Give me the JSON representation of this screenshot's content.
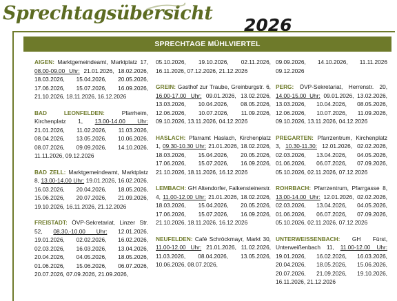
{
  "header": {
    "title": "Sprechtagsübersicht",
    "year": "2026",
    "section": "SPRECHTAGE MÜHLVIERTEL"
  },
  "columns": [
    [
      {
        "name": "AIGEN:",
        "location": "Marktgemeindeamt, Marktplatz 17,",
        "time": "08.00-09.00 Uhr:",
        "dates": "21.01.2026, 18.02.2026, 18.03.2026, 15.04.2026, 20.05.2026, 17.06.2026, 15.07.2026, 16.09.2026, 21.10.2026, 18.11.2026, 16.12.2026"
      },
      {
        "name": "BAD LEONFELDEN:",
        "location": "Pfarrheim, Kirchenplatz 1,",
        "time": "13.00-14.00 Uhr:",
        "dates": "21.01.2026, 11.02.2026, 11.03.2026, 08.04.2026, 13.05.2026, 10.06.2026, 08.07.2026, 09.09.2026, 14.10.2026, 11.11.2026, 09.12.2026"
      },
      {
        "name": "BAD ZELL:",
        "location": "Marktgemeindeamt, Marktplatz 8,",
        "time": "13.00-14.00 Uhr:",
        "dates": "19.01.2026, 16.02.2026, 16.03.2026, 20.04.2026, 18.05.2026, 15.06.2026, 20.07.2026, 21.09.2026, 19.10.2026, 16.11.2026, 21.12.2026"
      },
      {
        "name": "FREISTADT:",
        "location": "ÖVP-Sekretariat, Linzer Str. 52,",
        "time": "08.30.-10.00 Uhr:",
        "dates": "12.01.2026, 19.01.2026, 02.02.2026, 16.02.2026, 02.03.2026, 16.03.2026, 13.04.2026, 20.04.2026, 04.05.2026, 18.05.2026, 01.06.2026, 15.06.2026, 06.07.2026, 20.07.2026, 07.09.2026, 21.09.2026,"
      }
    ],
    [
      {
        "name": "",
        "location": "",
        "time": "",
        "dates": "05.10.2026, 19.10.2026, 02.11.2026, 16.11.2026, 07.12.2026, 21.12.2026"
      },
      {
        "name": "GREIN:",
        "location": "Gasthof zur Traube, Greinburgstr. 6,",
        "time": "16.00-17.00 Uhr:",
        "dates": "09.01.2026, 13.02.2026, 13.03.2026, 10.04.2026, 08.05.2026, 12.06.2026, 10.07.2026, 11.09.2026, 09.10.2026, 13.11.2026, 04.12.2026"
      },
      {
        "name": "HASLACH:",
        "location": "Pfarramt Haslach, Kirchenplatz 1,",
        "time": "09.30-10.30 Uhr:",
        "dates": "21.01.2026, 18.02.2026, 18.03.2026, 15.04.2026, 20.05.2026, 17.06.2026, 15.07.2026, 16.09.2026, 21.10.2026, 18.11.2026, 16.12.2026"
      },
      {
        "name": "LEMBACH:",
        "location": "GH Altendorfer, Falkensteinerstr. 4,",
        "time": "11.00-12.00 Uhr:",
        "dates": "21.01.2026, 18.02.2026, 18.03.2026, 15.04.2026, 20.05.2026, 17.06.2026, 15.07.2026, 16.09.2026, 21.10.2026, 18.11.2026, 16.12.2026"
      },
      {
        "name": "NEUFELDEN:",
        "location": "Café Schröckmayr, Markt 30,",
        "time": "11.00-12.00 Uhr:",
        "dates": "21.01.2026, 11.02.2026, 11.03.2026, 08.04.2026, 13.05.2026, 10.06.2026, 08.07.2026,"
      }
    ],
    [
      {
        "name": "",
        "location": "",
        "time": "",
        "dates": "09.09.2026, 14.10.2026, 11.11.2026 09.12.2026"
      },
      {
        "name": "PERG:",
        "location": "ÖVP-Sekretariat, Herrenstr. 20,",
        "time": "14.00-15.00 Uhr:",
        "dates": "09.01.2026, 13.02.2026, 13.03.2026, 10.04.2026, 08.05.2026, 12.06.2026, 10.07.2026, 11.09.2026, 09.10.2026, 13.11.2026, 04.12.2026"
      },
      {
        "name": "PREGARTEN:",
        "location": "Pfarrzentrum, Kirchenplatz 3,",
        "time": "10.30-11.30:",
        "dates": "12.01.2026, 02.02.2026, 02.03.2026, 13.04.2026, 04.05.2026, 01.06.2026, 06.07.2026, 07.09.2026, 05.10.2026, 02.11.2026, 07.12.2026"
      },
      {
        "name": "ROHRBACH:",
        "location": "Pfarrzentrum, Pfarrgasse 8,",
        "time": "13.00-14.00 Uhr:",
        "dates": "12.01.2026, 02.02.2026, 02.03.2026, 13.04.2026, 04.05.2026, 01.06.2026, 06.07.2026, 07.09.2026, 05.10.2026, 02.11.2026, 07.12.2026"
      },
      {
        "name": "UNTERWEISSENBACH:",
        "location": "GH Fürst, Unterweißenbach 11,",
        "time": "11.00-12.00 Uhr:",
        "dates": "19.01.2026, 16.02.2026, 16.03.2026, 20.04.2026, 18.05.2026, 15.06.2026, 20.07.2026, 21.09.2026, 19.10.2026, 16.11.2026, 21.12.2026"
      }
    ]
  ],
  "colors": {
    "accent": "#6e7a2a",
    "text": "#1a1a1a"
  }
}
